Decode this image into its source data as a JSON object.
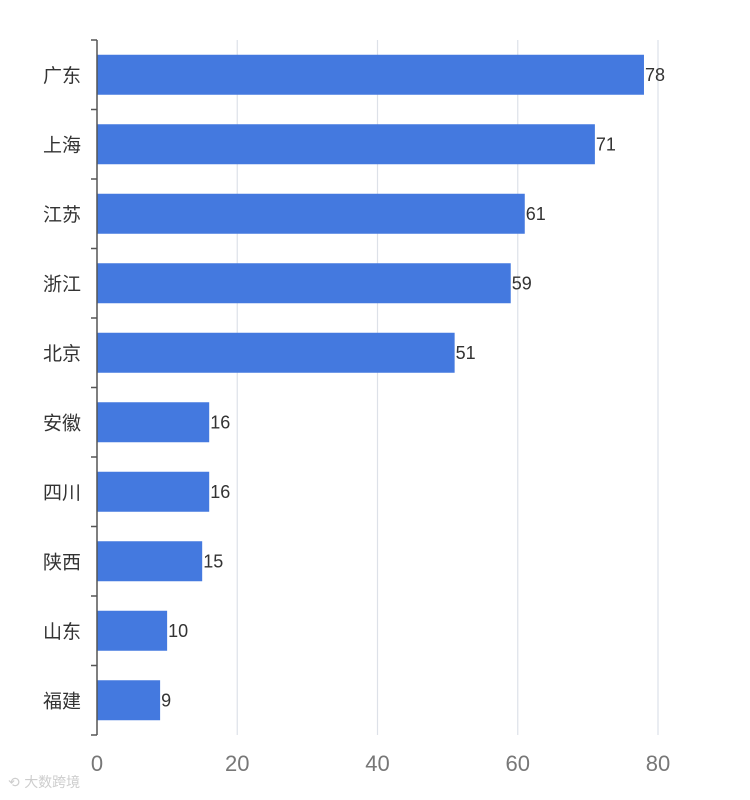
{
  "chart_data": {
    "type": "bar",
    "orientation": "horizontal",
    "categories": [
      "广东",
      "上海",
      "江苏",
      "浙江",
      "北京",
      "安徽",
      "四川",
      "陕西",
      "山东",
      "福建"
    ],
    "values": [
      78,
      71,
      61,
      59,
      51,
      16,
      16,
      15,
      10,
      9
    ],
    "xlim": [
      0,
      85
    ],
    "xticks": [
      0,
      20,
      40,
      60,
      80
    ],
    "grid": true,
    "bar_color": "#4479df",
    "data_labels": true
  },
  "watermark": "大数跨境"
}
